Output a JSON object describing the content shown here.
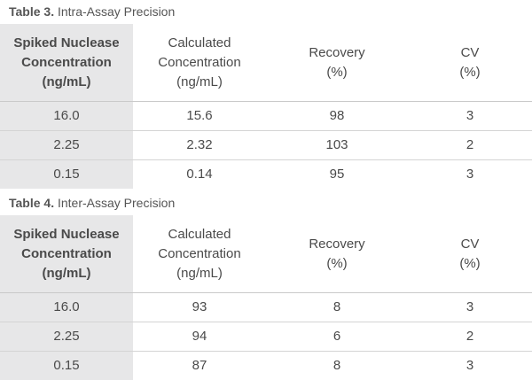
{
  "tables": [
    {
      "label": "Table 3.",
      "title": "Intra-Assay Precision",
      "headers": [
        [
          "Spiked Nuclease",
          "Concentration",
          "(ng/mL)"
        ],
        [
          "Calculated",
          "Concentration",
          "(ng/mL)"
        ],
        [
          "Recovery",
          "(%)"
        ],
        [
          "CV",
          "(%)"
        ]
      ],
      "rows": [
        [
          "16.0",
          "15.6",
          "98",
          "3"
        ],
        [
          "2.25",
          "2.32",
          "103",
          "2"
        ],
        [
          "0.15",
          "0.14",
          "95",
          "3"
        ]
      ]
    },
    {
      "label": "Table 4.",
      "title": "Inter-Assay Precision",
      "headers": [
        [
          "Spiked Nuclease",
          "Concentration",
          "(ng/mL)"
        ],
        [
          "Calculated",
          "Concentration",
          "(ng/mL)"
        ],
        [
          "Recovery",
          "(%)"
        ],
        [
          "CV",
          "(%)"
        ]
      ],
      "rows": [
        [
          "16.0",
          "93",
          "8",
          "3"
        ],
        [
          "2.25",
          "94",
          "6",
          "2"
        ],
        [
          "0.15",
          "87",
          "8",
          "3"
        ]
      ]
    }
  ]
}
